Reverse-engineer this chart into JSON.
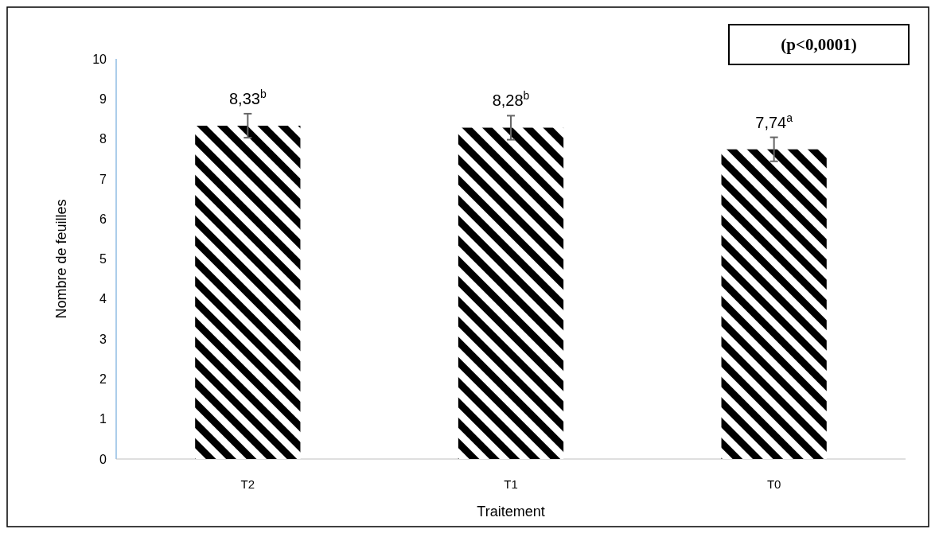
{
  "chart_data": {
    "type": "bar",
    "xlabel": "Traitement",
    "ylabel": "Nombre de feuilles",
    "categories": [
      "T2",
      "T1",
      "T0"
    ],
    "values": [
      8.33,
      8.28,
      7.74
    ],
    "errors": [
      0.3,
      0.3,
      0.3
    ],
    "color": "#000000",
    "value_labels": [
      "8,33$^{b}$",
      "8,28$^{b}$",
      "7,74$^{a}$"
    ],
    "ylim": [
      0,
      10
    ],
    "yticks": [
      0,
      1,
      2,
      3,
      4,
      5,
      6,
      7,
      8,
      9,
      10
    ],
    "annotations": [
      "(p<0,0001)"
    ]
  }
}
